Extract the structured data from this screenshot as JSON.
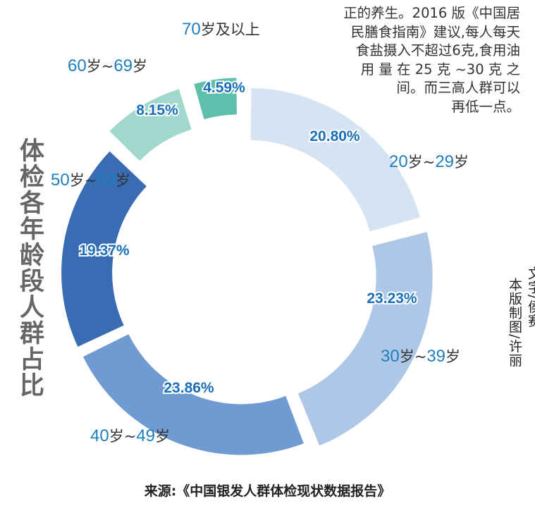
{
  "chart_data": {
    "type": "pie",
    "variant": "donut",
    "title": "体检各年龄段人群占比",
    "categories": [
      "20岁~29岁",
      "30岁~39岁",
      "40岁~49岁",
      "50岁~59岁",
      "60岁~69岁",
      "70岁及以上"
    ],
    "category_parts": [
      {
        "a": "20",
        "b": "岁~",
        "c": "29",
        "d": "岁"
      },
      {
        "a": "30",
        "b": "岁~",
        "c": "39",
        "d": "岁"
      },
      {
        "a": "40",
        "b": "岁~",
        "c": "49",
        "d": "岁"
      },
      {
        "a": "50",
        "b": "岁~",
        "c": "59",
        "d": "岁"
      },
      {
        "a": "60",
        "b": "岁~",
        "c": "69",
        "d": "岁"
      },
      {
        "a": "70",
        "b": "岁及以上",
        "c": "",
        "d": ""
      }
    ],
    "values": [
      20.8,
      23.23,
      23.86,
      19.37,
      8.15,
      4.59
    ],
    "value_labels": [
      "20.80%",
      "23.23%",
      "23.86%",
      "19.37%",
      "8.15%",
      "4.59%"
    ],
    "colors": [
      "#d5e3f3",
      "#afc7e7",
      "#6f9bd2",
      "#3a6cb4",
      "#a1d8cd",
      "#5fbfad"
    ],
    "source": "来源:《中国银发人群体检现状数据报告》"
  },
  "paragraph": [
    "正的养生。2016 版《中国居",
    "民膳食指南》建议,每人每天",
    "食盐摄入不超过6克,食用油",
    "用 量 在 25 克 ~30 克 之",
    "间。而三高人群可以",
    "再低一点。"
  ],
  "credit": [
    "文字/侯赛",
    "本版制图/许丽"
  ]
}
